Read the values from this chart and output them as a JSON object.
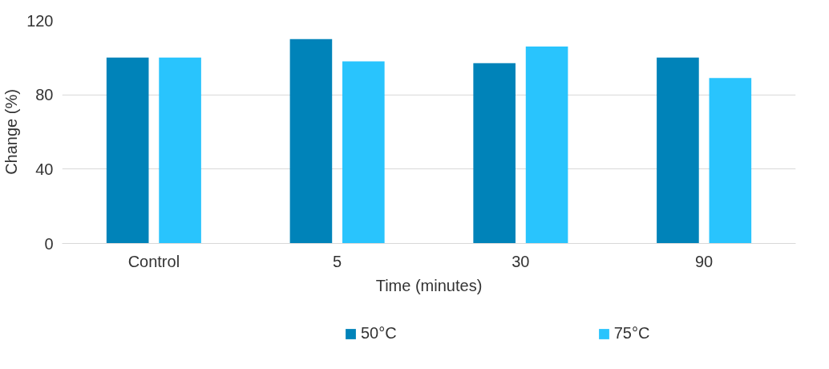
{
  "chart_data": {
    "type": "bar",
    "xlabel": "Time (minutes)",
    "ylabel": "Change (%)",
    "categories": [
      "Control",
      "5",
      "30",
      "90"
    ],
    "series": [
      {
        "name": "50°C",
        "color": "#0083b9",
        "values": [
          100,
          110,
          97,
          100
        ]
      },
      {
        "name": "75°C",
        "color": "#29c4fd",
        "values": [
          100,
          98,
          106,
          89
        ]
      }
    ],
    "ylim": [
      0,
      120
    ],
    "yticks": [
      0,
      40,
      80,
      120
    ],
    "grid": "y",
    "legend": "bottom"
  }
}
